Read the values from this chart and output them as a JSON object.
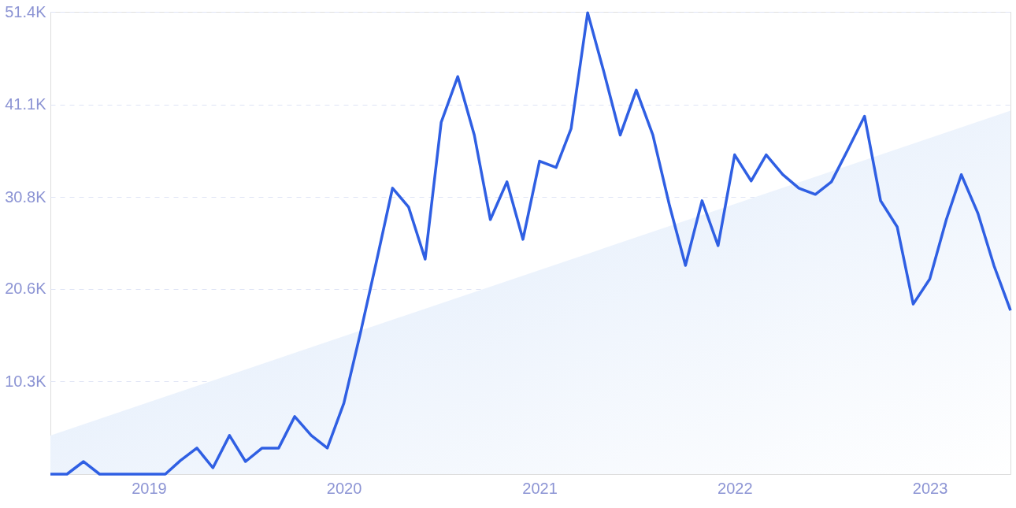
{
  "chart_data": {
    "type": "line",
    "xlim": [
      "2018-07",
      "2023-06"
    ],
    "xticks": [
      "2019",
      "2020",
      "2021",
      "2022",
      "2023"
    ],
    "ylim": [
      0,
      51400
    ],
    "yticks": [
      {
        "value": 10300,
        "label": "10.3K"
      },
      {
        "value": 20600,
        "label": "20.6K"
      },
      {
        "value": 30800,
        "label": "30.8K"
      },
      {
        "value": 41100,
        "label": "41.1K"
      },
      {
        "value": 51400,
        "label": "51.4K"
      }
    ],
    "grid": "y",
    "marker": "none",
    "line_style": "solid",
    "series": [
      {
        "type": "area",
        "color": "#dbe8fa",
        "x": [
          "2018-07",
          "2023-06"
        ],
        "values": [
          4300,
          40400
        ]
      },
      {
        "color": "#2f5fe3",
        "x": [
          "2018-07",
          "2018-08",
          "2018-09",
          "2018-10",
          "2018-11",
          "2018-12",
          "2019-01",
          "2019-02",
          "2019-03",
          "2019-04",
          "2019-05",
          "2019-06",
          "2019-07",
          "2019-08",
          "2019-09",
          "2019-10",
          "2019-11",
          "2019-12",
          "2020-01",
          "2020-02",
          "2020-03",
          "2020-04",
          "2020-05",
          "2020-06",
          "2020-07",
          "2020-08",
          "2020-09",
          "2020-10",
          "2020-11",
          "2020-12",
          "2021-01",
          "2021-02",
          "2021-03",
          "2021-04",
          "2021-05",
          "2021-06",
          "2021-07",
          "2021-08",
          "2021-09",
          "2021-10",
          "2021-11",
          "2021-12",
          "2022-01",
          "2022-02",
          "2022-03",
          "2022-04",
          "2022-05",
          "2022-06",
          "2022-07",
          "2022-08",
          "2022-09",
          "2022-10",
          "2022-11",
          "2022-12",
          "2023-01",
          "2023-02",
          "2023-03",
          "2023-04",
          "2023-05",
          "2023-06"
        ],
        "values": [
          0,
          0,
          1400,
          0,
          0,
          0,
          0,
          0,
          1500,
          2900,
          700,
          4300,
          1400,
          2900,
          2900,
          6400,
          4300,
          2900,
          7900,
          15700,
          23400,
          31800,
          29700,
          23900,
          39100,
          44200,
          37700,
          28300,
          32500,
          26100,
          34800,
          34100,
          38400,
          51300,
          44800,
          37700,
          42700,
          37700,
          29900,
          23200,
          30400,
          25400,
          35500,
          32600,
          35500,
          33300,
          31800,
          31100,
          32500,
          36100,
          39800,
          30400,
          27500,
          18900,
          21700,
          28300,
          33300,
          29000,
          23200,
          18200
        ]
      }
    ]
  }
}
